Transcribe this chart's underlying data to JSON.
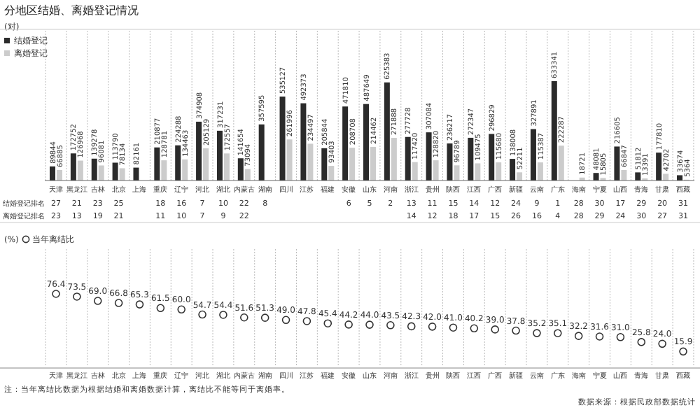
{
  "chart_data": [
    {
      "type": "bar",
      "title": "分地区结婚、离婚登记情况",
      "ylabel": "(对)",
      "legend": "top left",
      "grid": "x",
      "data_labels": true,
      "categories": [
        "天津",
        "黑龙江",
        "吉林",
        "北京",
        "上海",
        "重庆",
        "辽宁",
        "河北",
        "湖北",
        "内蒙古",
        "湖南",
        "四川",
        "江苏",
        "福建",
        "安徽",
        "山东",
        "河南",
        "浙江",
        "贵州",
        "陕西",
        "江西",
        "广西",
        "新疆",
        "云南",
        "广东",
        "海南",
        "宁夏",
        "山西",
        "青海",
        "甘肃",
        "西藏"
      ],
      "series": [
        {
          "name": "结婚登记",
          "color": "#2b2b2b",
          "values": [
            89844,
            172752,
            139278,
            113790,
            82161,
            210877,
            224288,
            374908,
            317231,
            141654,
            357595,
            535127,
            492373,
            205844,
            471810,
            487649,
            625383,
            277728,
            307084,
            236217,
            272347,
            296829,
            138008,
            327891,
            633341,
            null,
            48081,
            216605,
            51812,
            177810,
            33674
          ]
        },
        {
          "name": "离婚登记",
          "color": "#cccccc",
          "values": [
            66885,
            126968,
            96081,
            78134,
            null,
            128781,
            134463,
            205129,
            172557,
            73094,
            null,
            261996,
            234497,
            93403,
            208708,
            214462,
            271888,
            117420,
            128820,
            96789,
            109475,
            115680,
            52211,
            115387,
            222287,
            18721,
            15805,
            66847,
            13391,
            42702,
            5364
          ]
        }
      ]
    },
    {
      "type": "heatmap",
      "data_labels": true,
      "categories": [
        null,
        null,
        null,
        null,
        null,
        null,
        null,
        null,
        null,
        null,
        null,
        null,
        null,
        null,
        null,
        null,
        null,
        null,
        null,
        null,
        null,
        null,
        null,
        null,
        null,
        null,
        null,
        null,
        null,
        null,
        null
      ],
      "y_categories": [
        "结婚登记排名",
        "离婚登记排名"
      ],
      "cells": [
        [
          27,
          21,
          23,
          25,
          null,
          18,
          16,
          7,
          10,
          22,
          8,
          null,
          null,
          null,
          6,
          5,
          2,
          13,
          11,
          15,
          14,
          12,
          24,
          9,
          1,
          28,
          30,
          17,
          29,
          20,
          31
        ],
        [
          23,
          13,
          19,
          21,
          null,
          11,
          10,
          7,
          9,
          22,
          null,
          null,
          null,
          null,
          null,
          null,
          null,
          14,
          12,
          18,
          17,
          15,
          26,
          16,
          4,
          28,
          29,
          24,
          30,
          27,
          31
        ]
      ]
    },
    {
      "type": "scatter",
      "ylabel": "(%)",
      "legend": "top left",
      "grid": "x",
      "marker": "circle",
      "categories": [
        "天津",
        "黑龙江",
        "吉林",
        "北京",
        "上海",
        "重庆",
        "辽宁",
        "河北",
        "湖北",
        "内蒙古",
        "湖南",
        "四川",
        "江苏",
        "福建",
        "安徽",
        "山东",
        "河南",
        "浙江",
        "贵州",
        "陕西",
        "江西",
        "广西",
        "新疆",
        "云南",
        "广东",
        "海南",
        "宁夏",
        "山西",
        "青海",
        "甘肃",
        "西藏"
      ],
      "series": [
        {
          "name": "当年离结比",
          "color": "#333333",
          "values": [
            76.4,
            73.5,
            69.0,
            66.8,
            65.3,
            61.5,
            60.0,
            54.7,
            54.4,
            51.6,
            51.3,
            49.0,
            47.8,
            45.4,
            44.2,
            44.0,
            43.5,
            42.3,
            42.0,
            41.0,
            40.2,
            39.0,
            37.8,
            35.2,
            35.1,
            32.2,
            31.6,
            31.0,
            25.8,
            24.0,
            15.9
          ],
          "value_labels": [
            "76.4",
            "73.5",
            "69.0",
            "66.8",
            "65.3",
            "61.5",
            "60.0",
            "54.7",
            "54.4",
            "51.6",
            "51.3",
            "49.0",
            "47.8",
            "45.4",
            "44.2",
            "44.0",
            "43.5",
            "42.3",
            "42.0",
            "41.0",
            "40.2",
            "39.0",
            "37.8",
            "35.2",
            "35.1",
            "32.2",
            "31.6",
            "31.0",
            "25.8",
            "24.0",
            "15.9"
          ]
        }
      ],
      "annotations": [
        "注：当年离结比数据为根据结婚和离婚数据计算，离结比不能等同于离婚率。",
        "数据来源：根据民政部数据统计"
      ]
    }
  ]
}
